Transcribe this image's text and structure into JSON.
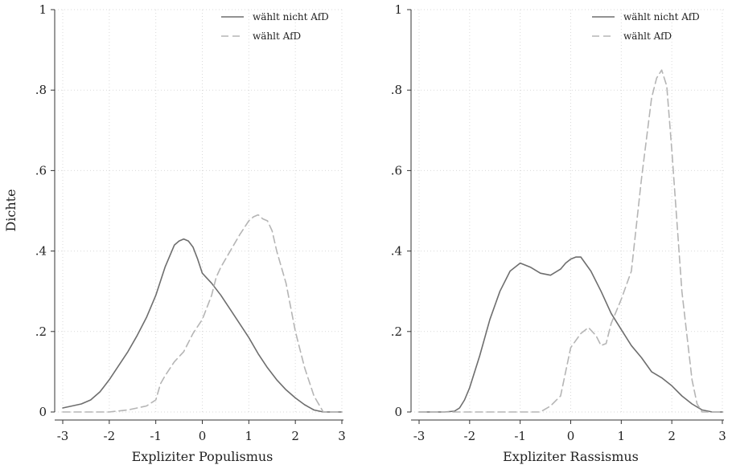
{
  "chart_data": [
    {
      "type": "line",
      "ylabel": "Dichte",
      "xlabel": "Expliziter Populismus",
      "xlim": [
        -3,
        3
      ],
      "ylim": [
        0,
        1
      ],
      "xticks": [
        "-3",
        "-2",
        "-1",
        "0",
        "1",
        "2",
        "3"
      ],
      "yticks": [
        "0",
        ".2",
        ".4",
        ".6",
        ".8",
        "1"
      ],
      "grid": true,
      "legend_position": "top-right",
      "series": [
        {
          "name": "wählt nicht AfD",
          "color": "#6e6e6e",
          "style": "solid",
          "x": [
            -3.0,
            -2.8,
            -2.6,
            -2.4,
            -2.2,
            -2.0,
            -1.8,
            -1.6,
            -1.4,
            -1.2,
            -1.0,
            -0.8,
            -0.6,
            -0.5,
            -0.4,
            -0.3,
            -0.2,
            -0.1,
            0.0,
            0.2,
            0.4,
            0.6,
            0.8,
            1.0,
            1.2,
            1.4,
            1.6,
            1.8,
            2.0,
            2.2,
            2.4,
            2.6,
            2.8,
            3.0
          ],
          "y": [
            0.01,
            0.015,
            0.02,
            0.03,
            0.05,
            0.08,
            0.115,
            0.15,
            0.19,
            0.235,
            0.29,
            0.36,
            0.415,
            0.425,
            0.43,
            0.425,
            0.41,
            0.38,
            0.345,
            0.32,
            0.29,
            0.255,
            0.22,
            0.185,
            0.145,
            0.11,
            0.08,
            0.055,
            0.035,
            0.018,
            0.005,
            0.0,
            0.0,
            0.0
          ]
        },
        {
          "name": "wählt AfD",
          "color": "#b5b5b5",
          "style": "dashed",
          "x": [
            -3.0,
            -2.0,
            -1.6,
            -1.2,
            -1.0,
            -0.9,
            -0.8,
            -0.6,
            -0.4,
            -0.2,
            0.0,
            0.2,
            0.3,
            0.4,
            0.6,
            0.8,
            1.0,
            1.1,
            1.2,
            1.3,
            1.4,
            1.5,
            1.6,
            1.8,
            2.0,
            2.2,
            2.4,
            2.6,
            2.8,
            3.0
          ],
          "y": [
            0.0,
            0.0,
            0.005,
            0.015,
            0.03,
            0.07,
            0.09,
            0.125,
            0.15,
            0.195,
            0.23,
            0.29,
            0.335,
            0.36,
            0.4,
            0.44,
            0.475,
            0.485,
            0.49,
            0.48,
            0.475,
            0.45,
            0.4,
            0.32,
            0.2,
            0.11,
            0.04,
            0.0,
            0.0,
            0.0
          ]
        }
      ]
    },
    {
      "type": "line",
      "ylabel": "",
      "xlabel": "Expliziter Rassismus",
      "xlim": [
        -3,
        3
      ],
      "ylim": [
        0,
        1
      ],
      "xticks": [
        "-3",
        "-2",
        "-1",
        "0",
        "1",
        "2",
        "3"
      ],
      "yticks": [
        "0",
        ".2",
        ".4",
        ".6",
        ".8",
        "1"
      ],
      "grid": true,
      "legend_position": "top-right",
      "series": [
        {
          "name": "wählt nicht AfD",
          "color": "#6e6e6e",
          "style": "solid",
          "x": [
            -3.0,
            -2.5,
            -2.3,
            -2.2,
            -2.1,
            -2.0,
            -1.8,
            -1.6,
            -1.4,
            -1.2,
            -1.0,
            -0.8,
            -0.6,
            -0.4,
            -0.2,
            -0.1,
            0.0,
            0.1,
            0.2,
            0.4,
            0.6,
            0.8,
            1.0,
            1.2,
            1.4,
            1.6,
            1.8,
            2.0,
            2.2,
            2.4,
            2.6,
            2.8,
            3.0
          ],
          "y": [
            0.0,
            0.0,
            0.002,
            0.01,
            0.03,
            0.06,
            0.14,
            0.23,
            0.3,
            0.35,
            0.37,
            0.36,
            0.345,
            0.34,
            0.355,
            0.37,
            0.38,
            0.385,
            0.385,
            0.35,
            0.3,
            0.245,
            0.205,
            0.165,
            0.135,
            0.1,
            0.085,
            0.065,
            0.04,
            0.02,
            0.005,
            0.0,
            0.0
          ]
        },
        {
          "name": "wählt AfD",
          "color": "#b5b5b5",
          "style": "dashed",
          "x": [
            -3.0,
            -0.6,
            -0.4,
            -0.2,
            0.0,
            0.2,
            0.35,
            0.5,
            0.6,
            0.7,
            0.8,
            1.0,
            1.2,
            1.4,
            1.6,
            1.7,
            1.8,
            1.9,
            2.0,
            2.2,
            2.4,
            2.5,
            2.6,
            3.0
          ],
          "y": [
            0.0,
            0.0,
            0.015,
            0.04,
            0.16,
            0.195,
            0.21,
            0.19,
            0.165,
            0.17,
            0.22,
            0.28,
            0.35,
            0.58,
            0.78,
            0.83,
            0.85,
            0.81,
            0.65,
            0.3,
            0.08,
            0.02,
            0.0,
            0.0
          ]
        }
      ]
    }
  ]
}
